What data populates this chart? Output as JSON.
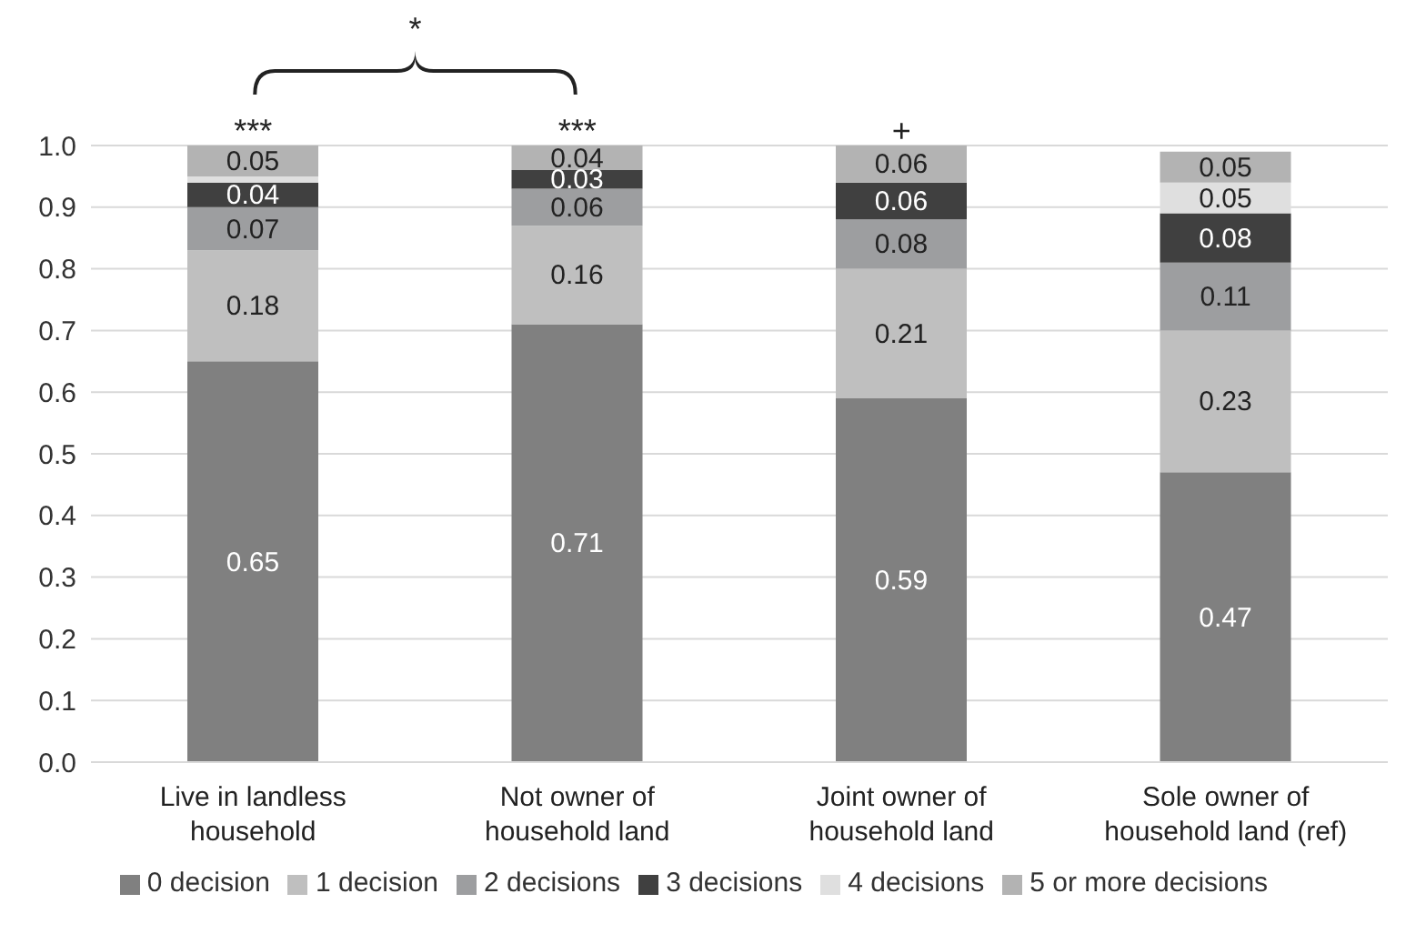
{
  "chart_data": {
    "type": "bar",
    "stacked": true,
    "categories": [
      "Live in landless household",
      "Not owner of household land",
      "Joint owner of household land",
      "Sole owner of household land (ref)"
    ],
    "series": [
      {
        "name": "0 decision",
        "color": "#808080",
        "values": [
          0.65,
          0.71,
          0.59,
          0.47
        ],
        "value_labels": [
          "0.65",
          "0.71",
          "0.59",
          "0.47"
        ]
      },
      {
        "name": "1 decision",
        "color": "#bfbfbf",
        "values": [
          0.18,
          0.16,
          0.21,
          0.23
        ],
        "value_labels": [
          "0.18",
          "0.16",
          "0.21",
          "0.23"
        ]
      },
      {
        "name": "2 decisions",
        "color": "#9d9ea0",
        "values": [
          0.07,
          0.06,
          0.08,
          0.11
        ],
        "value_labels": [
          "0.07",
          "0.06",
          "0.08",
          "0.11"
        ]
      },
      {
        "name": "3 decisions",
        "color": "#404040",
        "values": [
          0.04,
          0.03,
          0.06,
          0.08
        ],
        "value_labels": [
          "0.04",
          "0.03",
          "0.06",
          "0.08"
        ]
      },
      {
        "name": "4 decisions",
        "color": "#dfdfdf",
        "values": [
          0.01,
          null,
          null,
          0.05
        ],
        "value_labels": [
          null,
          null,
          null,
          "0.05"
        ]
      },
      {
        "name": "5 or more decisions",
        "color": "#b3b3b3",
        "values": [
          0.05,
          0.04,
          0.06,
          0.05
        ],
        "value_labels": [
          "0.05",
          "0.04",
          "0.06",
          "0.05"
        ]
      }
    ],
    "ylim": [
      0,
      1
    ],
    "yticks": [
      {
        "value": 0,
        "label": "0.0"
      },
      {
        "value": 0.1,
        "label": "0.1"
      },
      {
        "value": 0.2,
        "label": "0.2"
      },
      {
        "value": 0.3,
        "label": "0.3"
      },
      {
        "value": 0.4,
        "label": "0.4"
      },
      {
        "value": 0.5,
        "label": "0.5"
      },
      {
        "value": 0.6,
        "label": "0.6"
      },
      {
        "value": 0.7,
        "label": "0.7"
      },
      {
        "value": 0.8,
        "label": "0.8"
      },
      {
        "value": 0.9,
        "label": "0.9"
      },
      {
        "value": 1,
        "label": "1.0"
      }
    ],
    "grid": "y",
    "legend": "bottom",
    "annotations": [
      "***",
      "***",
      "+",
      "*"
    ]
  }
}
